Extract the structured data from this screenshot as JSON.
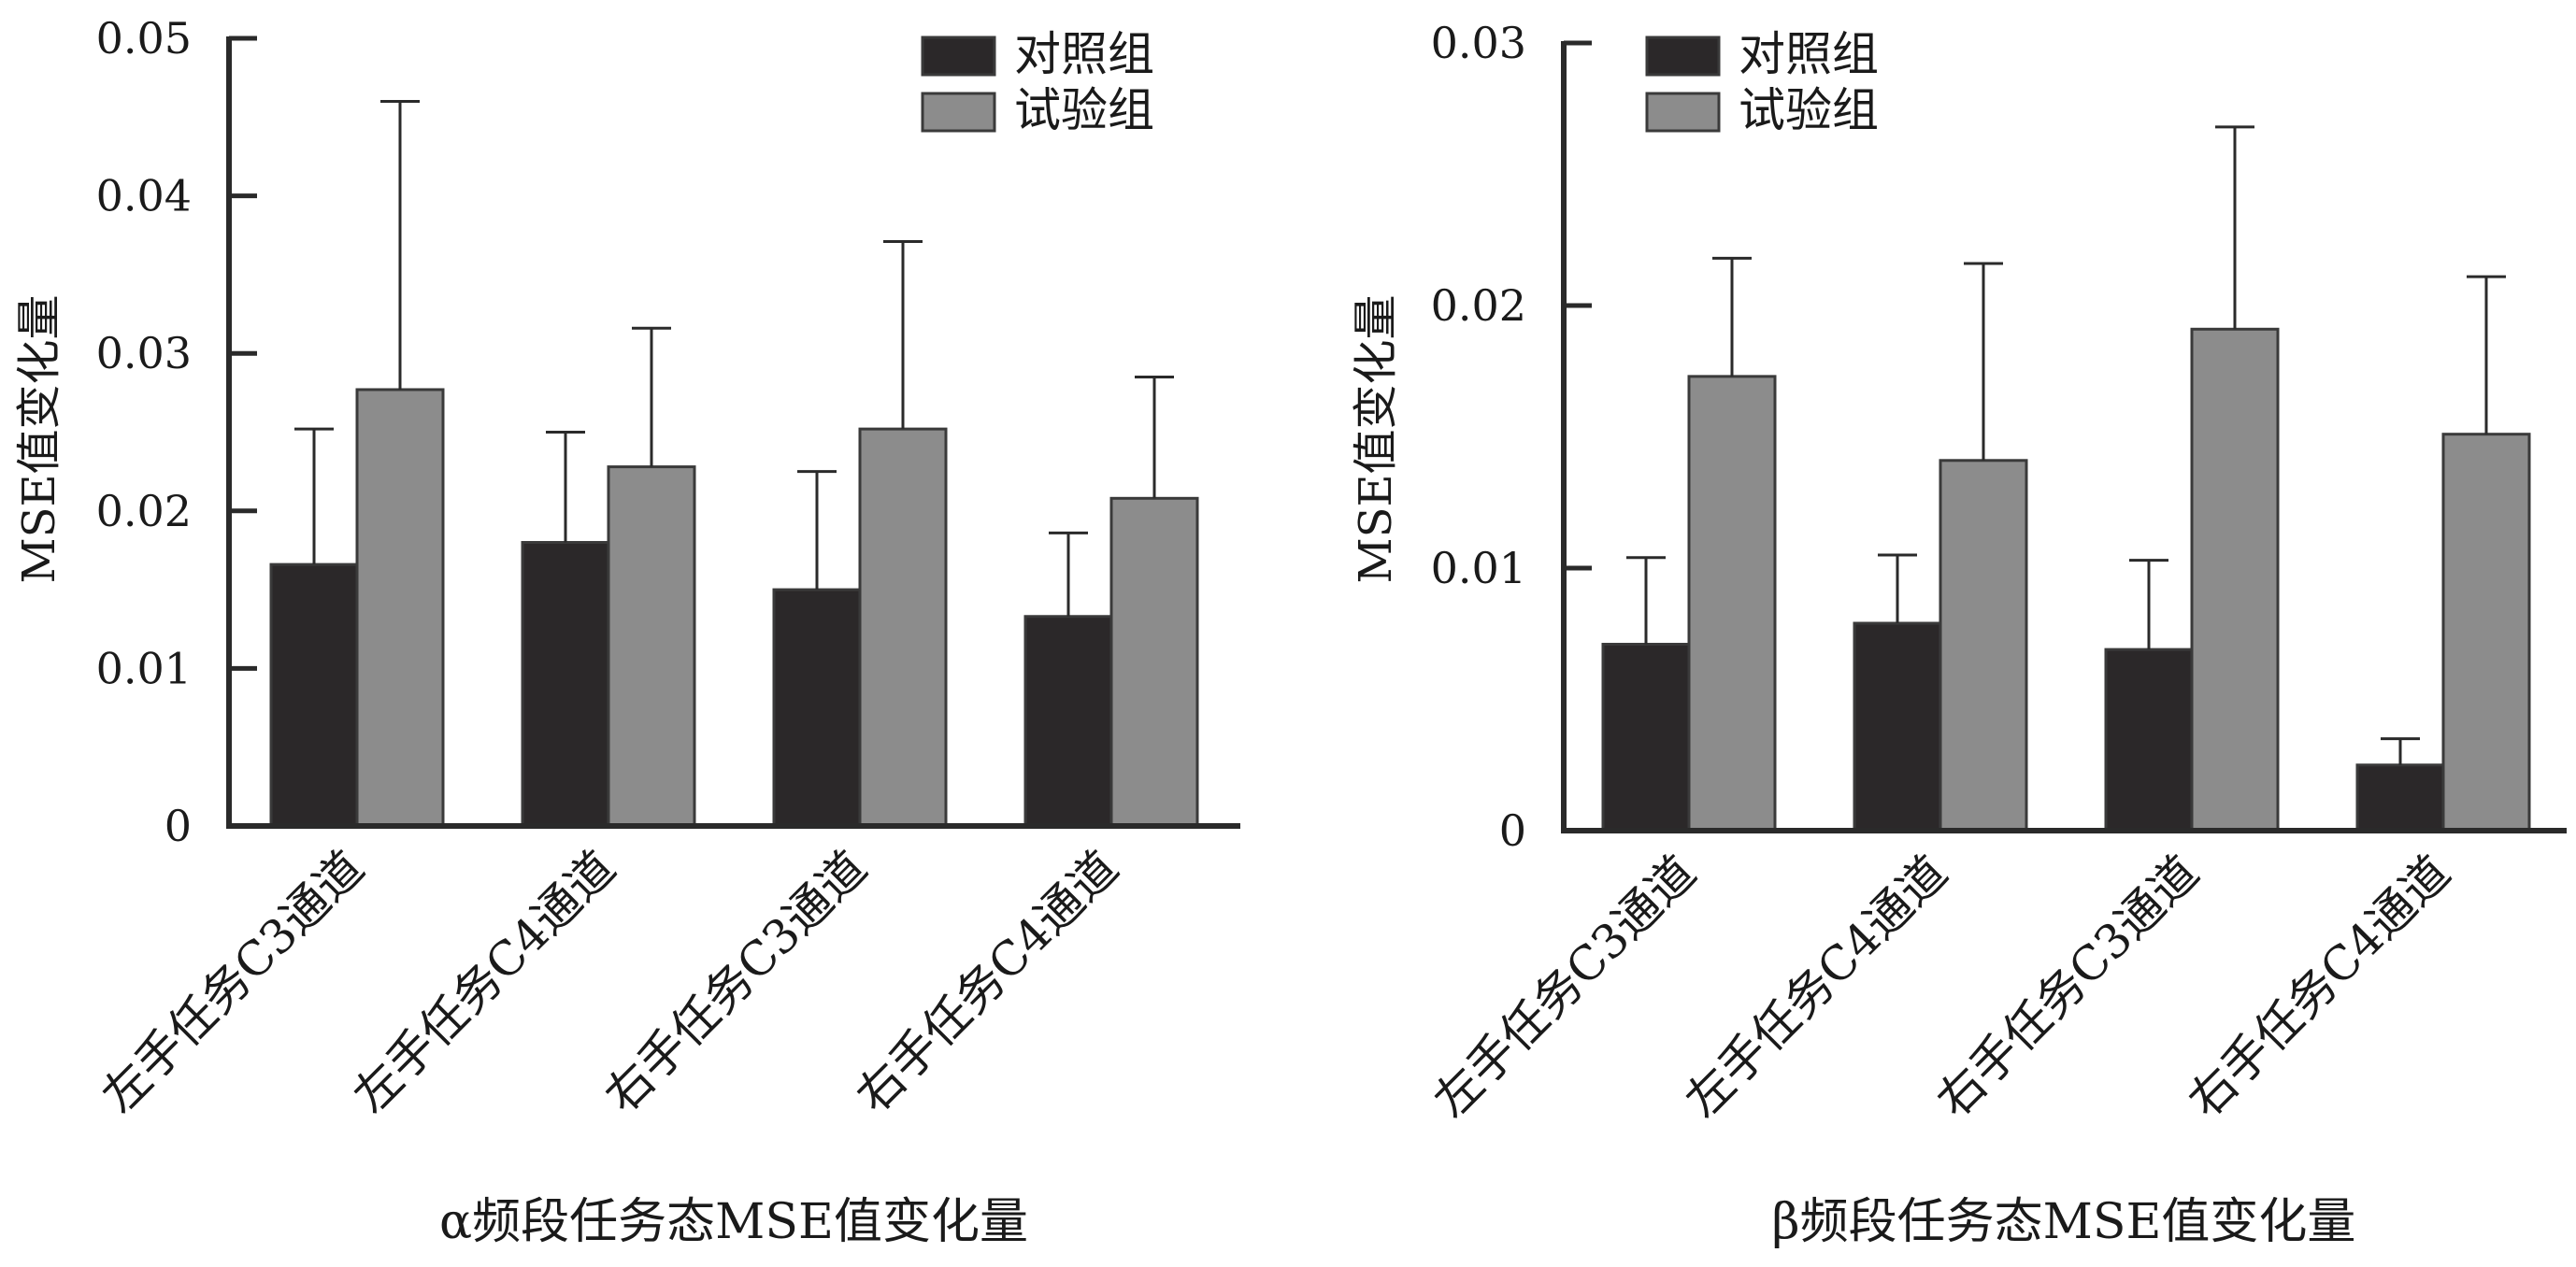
{
  "chart_data": [
    {
      "type": "bar",
      "title": "α频段任务态MSE值变化量",
      "ylabel": "MSE值变化量",
      "xlabel": "",
      "ylim": [
        0,
        0.05
      ],
      "yticks": [
        "0",
        "0.01",
        "0.02",
        "0.03",
        "0.04",
        "0.05"
      ],
      "categories": [
        "左手任务C3通道",
        "左手任务C4通道",
        "右手任务C3通道",
        "右手任务C4通道"
      ],
      "series": [
        {
          "name": "对照组",
          "color": "#2b2829",
          "values": [
            0.0166,
            0.018,
            0.015,
            0.0133
          ],
          "error": [
            0.0086,
            0.007,
            0.0075,
            0.0053
          ]
        },
        {
          "name": "试验组",
          "color": "#8c8c8c",
          "values": [
            0.0277,
            0.0228,
            0.0252,
            0.0208
          ],
          "error": [
            0.0183,
            0.0088,
            0.0119,
            0.0077
          ]
        }
      ],
      "legend": "top-right",
      "error_bars": "upper",
      "grid": false
    },
    {
      "type": "bar",
      "title": "β频段任务态MSE值变化量",
      "ylabel": "MSE值变化量",
      "xlabel": "",
      "ylim": [
        0,
        0.03
      ],
      "yticks": [
        "0",
        "0.01",
        "0.02",
        "0.03"
      ],
      "categories": [
        "左手任务C3通道",
        "左手任务C4通道",
        "右手任务C3通道",
        "右手任务C4通道"
      ],
      "series": [
        {
          "name": "对照组",
          "color": "#2b2829",
          "values": [
            0.0071,
            0.0079,
            0.0069,
            0.0025
          ],
          "error": [
            0.0033,
            0.0026,
            0.0034,
            0.001
          ]
        },
        {
          "name": "试验组",
          "color": "#8c8c8c",
          "values": [
            0.0173,
            0.0141,
            0.0191,
            0.0151
          ],
          "error": [
            0.0045,
            0.0075,
            0.0077,
            0.006
          ]
        }
      ],
      "legend": "top-right",
      "error_bars": "upper",
      "grid": false
    }
  ]
}
